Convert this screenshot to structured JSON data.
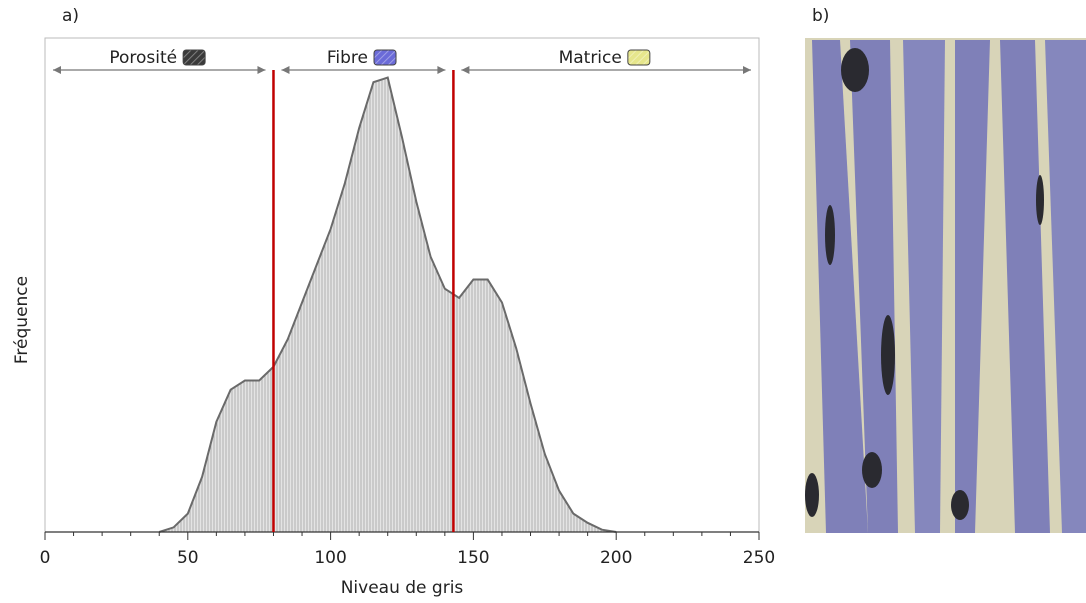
{
  "chart_data": {
    "type": "area",
    "panel_labels": [
      "a)",
      "b)"
    ],
    "xlabel": "Niveau de gris",
    "ylabel": "Fréquence",
    "x": [
      40,
      45,
      50,
      55,
      60,
      65,
      70,
      75,
      80,
      85,
      90,
      95,
      100,
      105,
      110,
      115,
      120,
      125,
      130,
      135,
      140,
      145,
      150,
      155,
      160,
      165,
      170,
      175,
      180,
      185,
      190,
      195,
      200
    ],
    "values": [
      0,
      1,
      4,
      12,
      24,
      31,
      33,
      33,
      36,
      42,
      50,
      58,
      66,
      76,
      88,
      98,
      99,
      86,
      72,
      60,
      53,
      51,
      55,
      55,
      50,
      40,
      28,
      17,
      9,
      4,
      2,
      0.5,
      0
    ],
    "fill": "#e4e4e4",
    "color": "#6a6a6a",
    "xlim": [
      0,
      250
    ],
    "xticks": [
      0,
      50,
      100,
      150,
      200,
      250
    ],
    "xminorticks": [
      10,
      20,
      30,
      40,
      60,
      70,
      80,
      90,
      110,
      120,
      130,
      140,
      160,
      170,
      180,
      190,
      210,
      220,
      230,
      240
    ],
    "ylim": [
      0,
      100
    ],
    "thresholds": [
      80,
      143
    ],
    "threshold_color": "#c00000",
    "regions": [
      {
        "label": "Porosité",
        "color": "#3a3a3a"
      },
      {
        "label": "Fibre",
        "color": "#6b6bd8"
      },
      {
        "label": "Matrice",
        "color": "#e6e68c"
      }
    ]
  }
}
